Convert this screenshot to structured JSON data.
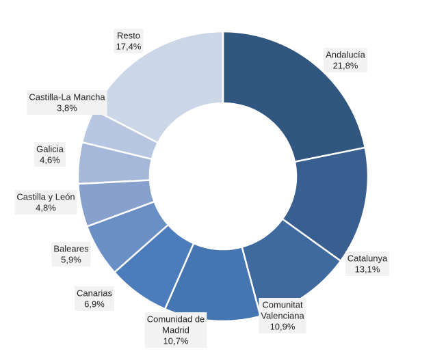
{
  "chart_data": {
    "type": "pie",
    "style": "donut",
    "categories": [
      "Andalucía",
      "Catalunya",
      "Comunitat Valenciana",
      "Comunidad de Madrid",
      "Canarias",
      "Baleares",
      "Castilla y León",
      "Galicia",
      "Castilla-La Mancha",
      "Resto"
    ],
    "values": [
      21.8,
      13.1,
      10.9,
      10.7,
      6.9,
      5.9,
      4.8,
      4.6,
      3.8,
      17.4
    ],
    "value_labels": [
      "21,8%",
      "13,1%",
      "10,9%",
      "10,7%",
      "6,9%",
      "5,9%",
      "4,8%",
      "4,6%",
      "3,8%",
      "17,4%"
    ],
    "label_lines": [
      [
        "Andalucía"
      ],
      [
        "Catalunya"
      ],
      [
        "Comunitat",
        "Valenciana"
      ],
      [
        "Comunidad de",
        "Madrid"
      ],
      [
        "Canarias"
      ],
      [
        "Baleares"
      ],
      [
        "Castilla y León"
      ],
      [
        "Galicia"
      ],
      [
        "Castilla-La Mancha"
      ],
      [
        "Resto"
      ]
    ],
    "colors": [
      "#31567f",
      "#385f8f",
      "#3e6a9f",
      "#4676b1",
      "#4c7cbc",
      "#6a8fc5",
      "#88a1cc",
      "#a6b8da",
      "#b7c6e1",
      "#cbd6e7"
    ]
  }
}
